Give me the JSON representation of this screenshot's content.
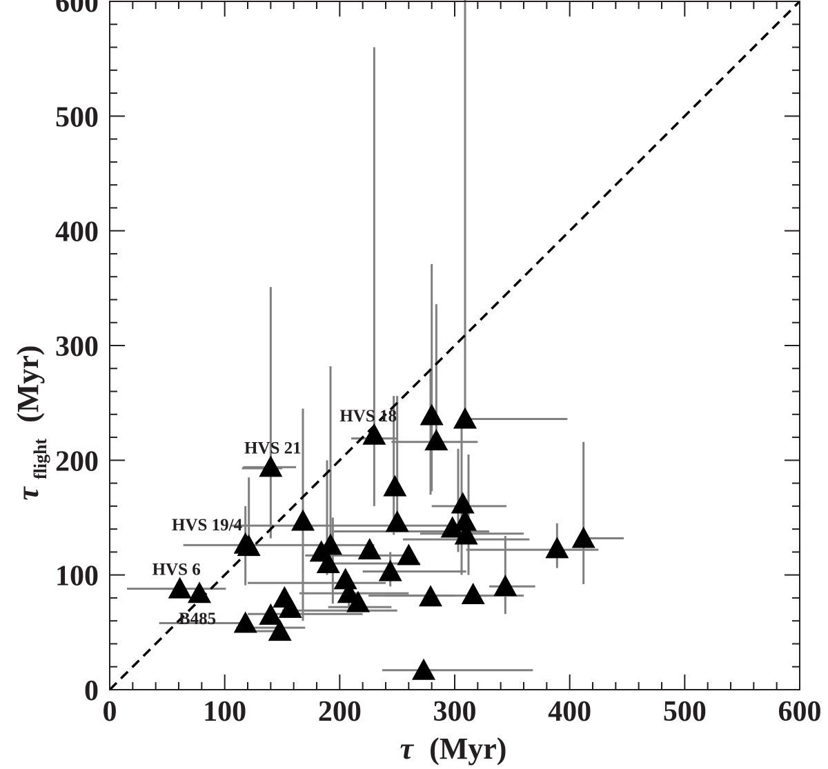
{
  "chart_data": {
    "type": "scatter",
    "xlim": [
      0,
      600
    ],
    "ylim": [
      0,
      600
    ],
    "xticks": [
      "0",
      "100",
      "200",
      "300",
      "400",
      "500",
      "600"
    ],
    "yticks": [
      "0",
      "100",
      "200",
      "300",
      "400",
      "500",
      "600"
    ],
    "xlabel": {
      "symbol": "τ",
      "unit": "(Myr)"
    },
    "ylabel": {
      "symbol": "τ",
      "subscript": "flight",
      "unit": "(Myr)"
    },
    "reference_line": {
      "type": "y=x",
      "style": "dashed"
    },
    "grid": false,
    "colors": {
      "marker": "#000000",
      "errorbar": "#7f7f7f",
      "frame": "#231f20"
    },
    "points": [
      {
        "x": 61,
        "y": 88,
        "x_err": [
          46,
          40
        ],
        "y_err": [
          0,
          0
        ]
      },
      {
        "x": 78,
        "y": 84,
        "x_err": [
          0,
          0
        ],
        "y_err": [
          0,
          0
        ]
      },
      {
        "x": 118,
        "y": 58,
        "x_err": [
          75,
          0
        ],
        "y_err": [
          0,
          0
        ]
      },
      {
        "x": 140,
        "y": 65,
        "x_err": [
          0,
          0
        ],
        "y_err": [
          0,
          0
        ]
      },
      {
        "x": 148,
        "y": 51,
        "x_err": [
          35,
          0
        ],
        "y_err": [
          0,
          0
        ]
      },
      {
        "x": 152,
        "y": 80,
        "x_err": [
          0,
          0
        ],
        "y_err": [
          0,
          0
        ]
      },
      {
        "x": 157,
        "y": 71,
        "x_err": [
          0,
          0
        ],
        "y_err": [
          0,
          0
        ]
      },
      {
        "x": 118,
        "y": 127,
        "x_err": [
          0,
          0
        ],
        "y_err": [
          36,
          0
        ]
      },
      {
        "x": 121,
        "y": 125,
        "x_err": [
          0,
          0
        ],
        "y_err": [
          0,
          60
        ]
      },
      {
        "x": 140,
        "y": 194,
        "x_err": [
          24,
          22
        ],
        "y_err": [
          62,
          157
        ]
      },
      {
        "x": 168,
        "y": 147,
        "x_err": [
          0,
          0
        ],
        "y_err": [
          47,
          98
        ]
      },
      {
        "x": 184,
        "y": 120,
        "x_err": [
          0,
          0
        ],
        "y_err": [
          0,
          0
        ]
      },
      {
        "x": 192,
        "y": 126,
        "x_err": [
          0,
          0
        ],
        "y_err": [
          0,
          156
        ]
      },
      {
        "x": 190,
        "y": 110,
        "x_err": [
          0,
          0
        ],
        "y_err": [
          0,
          0
        ]
      },
      {
        "x": 205,
        "y": 96,
        "x_err": [
          0,
          0
        ],
        "y_err": [
          0,
          0
        ]
      },
      {
        "x": 208,
        "y": 84,
        "x_err": [
          0,
          0
        ],
        "y_err": [
          0,
          0
        ]
      },
      {
        "x": 216,
        "y": 76,
        "x_err": [
          0,
          0
        ],
        "y_err": [
          0,
          0
        ]
      },
      {
        "x": 226,
        "y": 122,
        "x_err": [
          0,
          0
        ],
        "y_err": [
          0,
          0
        ]
      },
      {
        "x": 230,
        "y": 222,
        "x_err": [
          0,
          0
        ],
        "y_err": [
          62,
          338
        ]
      },
      {
        "x": 244,
        "y": 103,
        "x_err": [
          0,
          0
        ],
        "y_err": [
          0,
          0
        ]
      },
      {
        "x": 248,
        "y": 177,
        "x_err": [
          0,
          0
        ],
        "y_err": [
          0,
          0
        ]
      },
      {
        "x": 250,
        "y": 146,
        "x_err": [
          0,
          0
        ],
        "y_err": [
          0,
          110
        ]
      },
      {
        "x": 260,
        "y": 117,
        "x_err": [
          0,
          0
        ],
        "y_err": [
          0,
          0
        ]
      },
      {
        "x": 273,
        "y": 17,
        "x_err": [
          36,
          95
        ],
        "y_err": [
          0,
          0
        ]
      },
      {
        "x": 279,
        "y": 81,
        "x_err": [
          0,
          0
        ],
        "y_err": [
          0,
          0
        ]
      },
      {
        "x": 280,
        "y": 239,
        "x_err": [
          0,
          0
        ],
        "y_err": [
          66,
          132
        ]
      },
      {
        "x": 284,
        "y": 217,
        "x_err": [
          0,
          0
        ],
        "y_err": [
          0,
          119
        ]
      },
      {
        "x": 298,
        "y": 141,
        "x_err": [
          0,
          0
        ],
        "y_err": [
          0,
          0
        ]
      },
      {
        "x": 307,
        "y": 162,
        "x_err": [
          0,
          0
        ],
        "y_err": [
          0,
          0
        ]
      },
      {
        "x": 309,
        "y": 147,
        "x_err": [
          0,
          0
        ],
        "y_err": [
          0,
          0
        ]
      },
      {
        "x": 310,
        "y": 135,
        "x_err": [
          0,
          0
        ],
        "y_err": [
          0,
          0
        ]
      },
      {
        "x": 309,
        "y": 236,
        "x_err": [
          0,
          89
        ],
        "y_err": [
          0,
          366
        ]
      },
      {
        "x": 316,
        "y": 83,
        "x_err": [
          0,
          0
        ],
        "y_err": [
          0,
          0
        ]
      },
      {
        "x": 344,
        "y": 90,
        "x_err": [
          0,
          0
        ],
        "y_err": [
          24,
          44
        ]
      },
      {
        "x": 389,
        "y": 123,
        "x_err": [
          0,
          0
        ],
        "y_err": [
          17,
          22
        ]
      },
      {
        "x": 412,
        "y": 132,
        "x_err": [
          0,
          35
        ],
        "y_err": [
          40,
          84
        ]
      }
    ],
    "extra_hbars": [
      {
        "y": 126,
        "x1": 64,
        "x2": 230
      },
      {
        "y": 143,
        "x1": 105,
        "x2": 295
      },
      {
        "y": 138,
        "x1": 195,
        "x2": 330
      },
      {
        "y": 136,
        "x1": 270,
        "x2": 360
      },
      {
        "y": 131,
        "x1": 255,
        "x2": 365
      },
      {
        "y": 122,
        "x1": 310,
        "x2": 425
      },
      {
        "y": 117,
        "x1": 170,
        "x2": 260
      },
      {
        "y": 110,
        "x1": 195,
        "x2": 270
      },
      {
        "y": 103,
        "x1": 220,
        "x2": 310
      },
      {
        "y": 93,
        "x1": 120,
        "x2": 240
      },
      {
        "y": 84,
        "x1": 165,
        "x2": 260
      },
      {
        "y": 82,
        "x1": 225,
        "x2": 300
      },
      {
        "y": 82,
        "x1": 240,
        "x2": 360
      },
      {
        "y": 90,
        "x1": 330,
        "x2": 370
      },
      {
        "y": 66,
        "x1": 120,
        "x2": 220
      },
      {
        "y": 69,
        "x1": 150,
        "x2": 250
      },
      {
        "y": 72,
        "x1": 190,
        "x2": 245
      },
      {
        "y": 54,
        "x1": 110,
        "x2": 170
      },
      {
        "y": 219,
        "x1": 210,
        "x2": 250
      },
      {
        "y": 216,
        "x1": 245,
        "x2": 320
      },
      {
        "y": 160,
        "x1": 280,
        "x2": 345
      },
      {
        "y": 193,
        "x1": 115,
        "x2": 150
      }
    ],
    "extra_vbars": [
      {
        "x": 189,
        "y1": 100,
        "y2": 200
      },
      {
        "x": 194,
        "y1": 75,
        "y2": 150
      },
      {
        "x": 208,
        "y1": 70,
        "y2": 100
      },
      {
        "x": 247,
        "y1": 135,
        "y2": 256
      },
      {
        "x": 279,
        "y1": 170,
        "y2": 280
      },
      {
        "x": 303,
        "y1": 120,
        "y2": 210
      },
      {
        "x": 306,
        "y1": 100,
        "y2": 230
      },
      {
        "x": 312,
        "y1": 100,
        "y2": 205
      },
      {
        "x": 168,
        "y1": 60,
        "y2": 100
      },
      {
        "x": 118,
        "y1": 120,
        "y2": 160
      },
      {
        "x": 244,
        "y1": 90,
        "y2": 120
      }
    ],
    "annotations": [
      {
        "text": "HVS 18",
        "x": 200,
        "y": 234
      },
      {
        "text": "HVS 21",
        "x": 117,
        "y": 206
      },
      {
        "text": "HVS 19/4",
        "x": 54,
        "y": 139
      },
      {
        "text": "HVS 6",
        "x": 37,
        "y": 100
      },
      {
        "text": "B485",
        "x": 60,
        "y": 57
      }
    ]
  }
}
